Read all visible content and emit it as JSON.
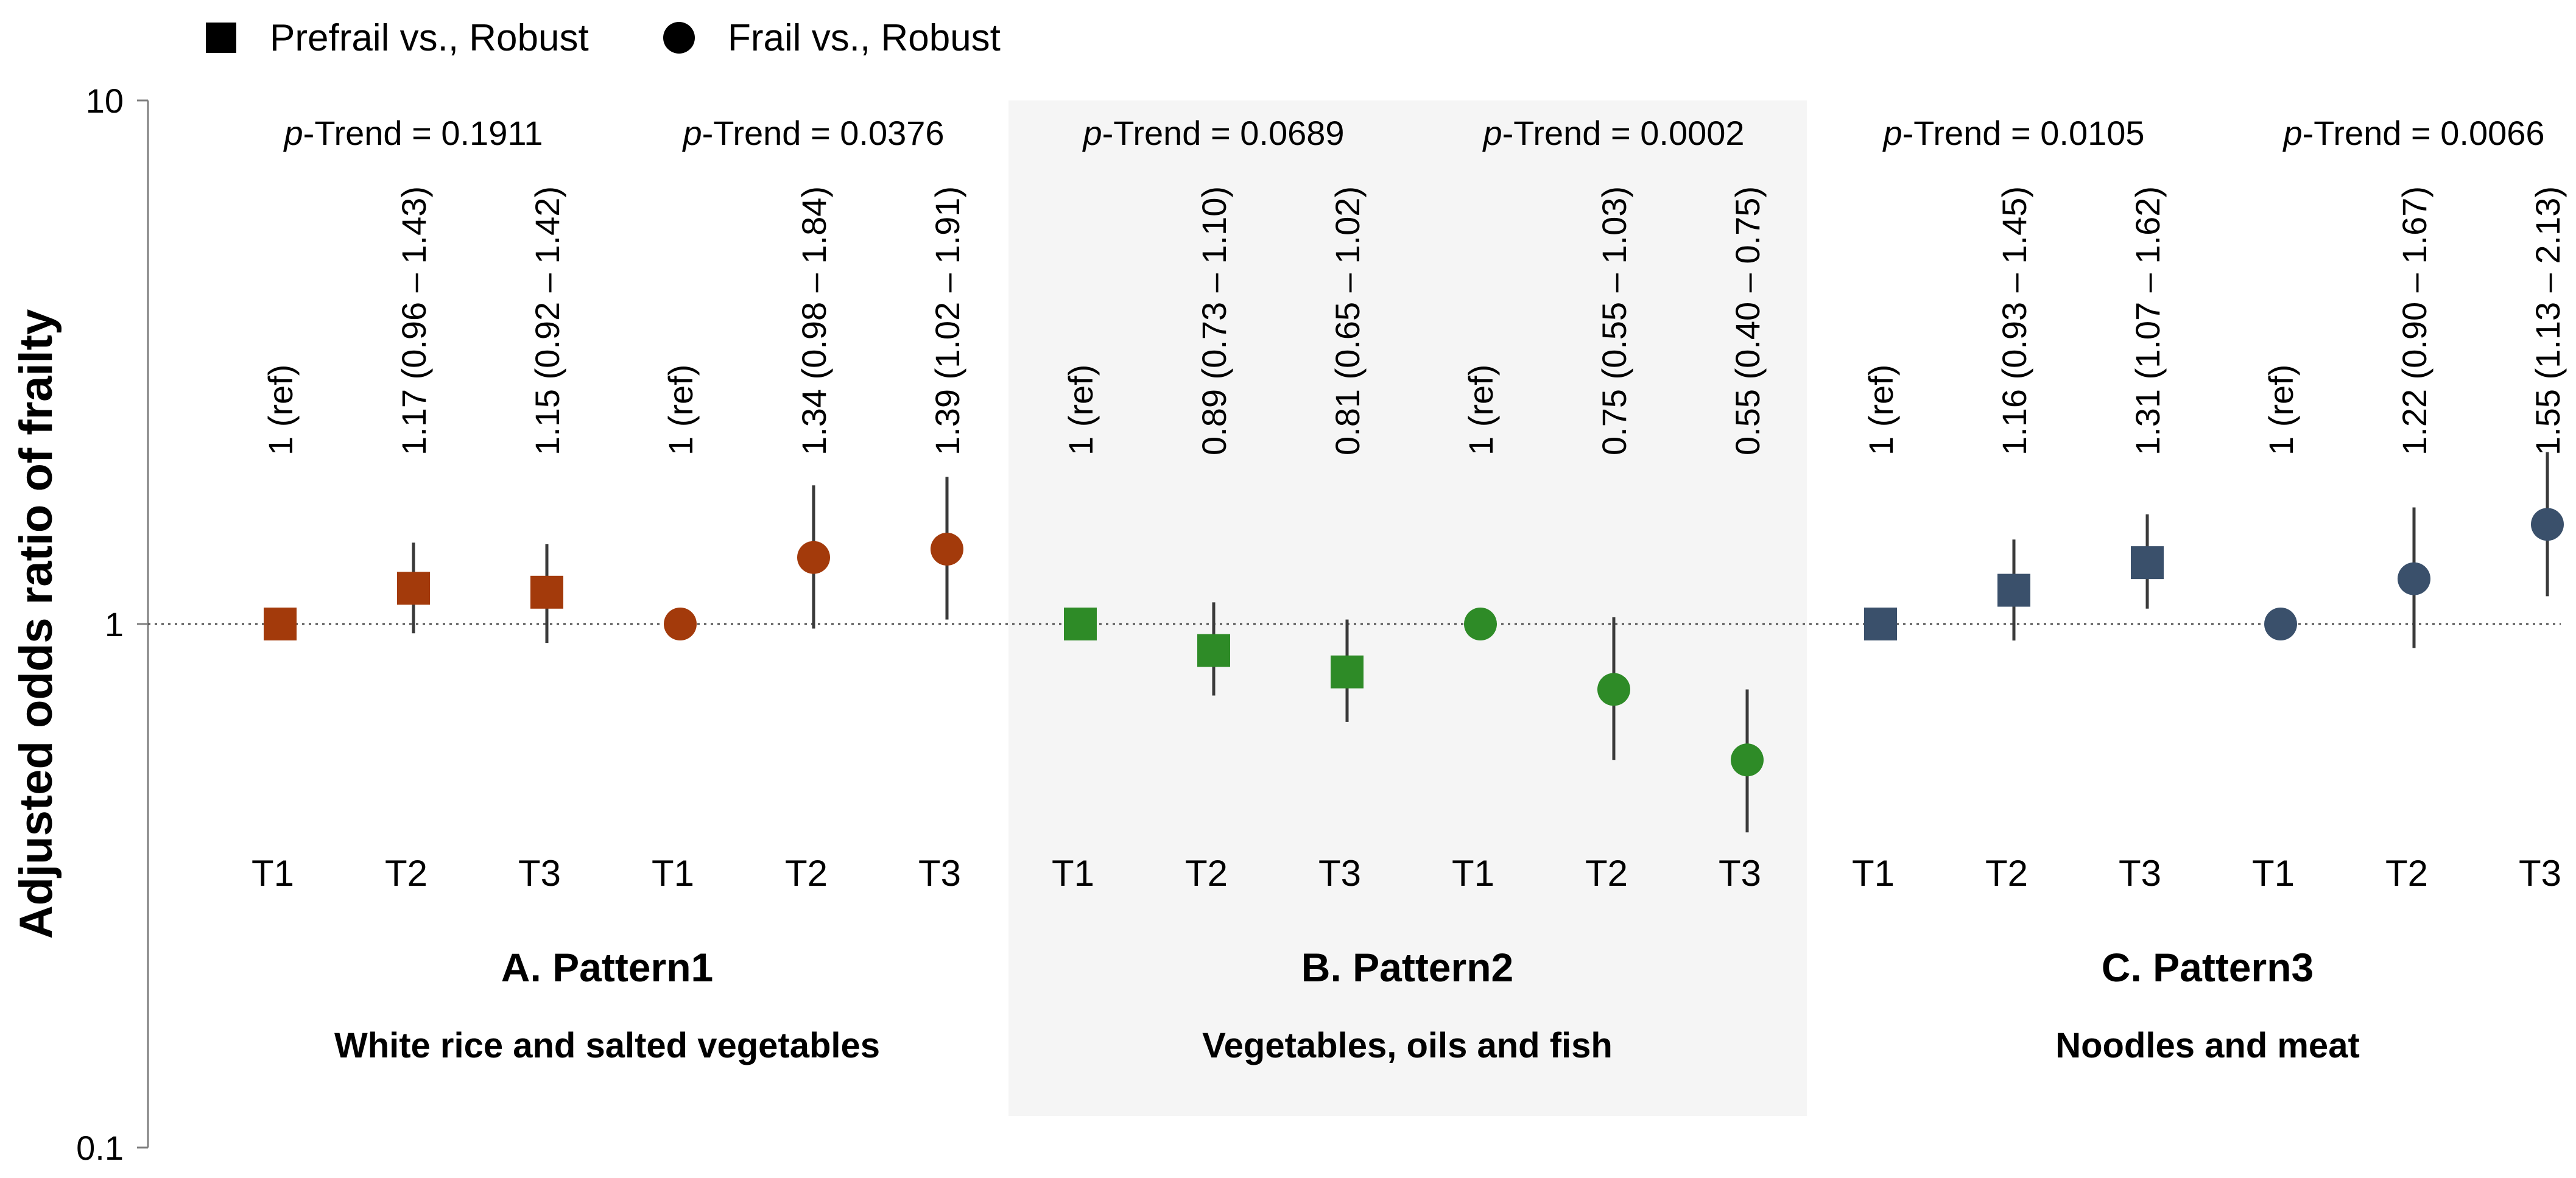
{
  "legend": [
    {
      "marker": "square",
      "label": "Prefrail vs., Robust"
    },
    {
      "marker": "circle",
      "label": "Frail vs., Robust"
    }
  ],
  "chart_data": {
    "type": "scatter",
    "scale": "log",
    "ylabel": "Adjusted odds ratio of frailty",
    "ylim": [
      0.1,
      10
    ],
    "yticks": [
      "10",
      "1",
      "0.1"
    ],
    "reference_line": 1,
    "panels": [
      {
        "title": "A. Pattern1",
        "subtitle": "White rice and salted vegetables",
        "color": "#a33a0b",
        "shaded": false,
        "groups": [
          {
            "name": "Prefrail vs., Robust",
            "marker": "square",
            "p_trend_prefix": "p",
            "p_trend_rest": "-Trend = 0.1911",
            "points": [
              {
                "t": "T1",
                "or": 1,
                "lo": null,
                "hi": null,
                "label": "1  (ref)"
              },
              {
                "t": "T2",
                "or": 1.17,
                "lo": 0.96,
                "hi": 1.43,
                "label": "1.17 (0.96 – 1.43)"
              },
              {
                "t": "T3",
                "or": 1.15,
                "lo": 0.92,
                "hi": 1.42,
                "label": "1.15 (0.92 – 1.42)"
              }
            ]
          },
          {
            "name": "Frail vs., Robust",
            "marker": "circle",
            "p_trend_prefix": "p",
            "p_trend_rest": "-Trend = 0.0376",
            "points": [
              {
                "t": "T1",
                "or": 1,
                "lo": null,
                "hi": null,
                "label": "1  (ref)"
              },
              {
                "t": "T2",
                "or": 1.34,
                "lo": 0.98,
                "hi": 1.84,
                "label": "1.34 (0.98 – 1.84)"
              },
              {
                "t": "T3",
                "or": 1.39,
                "lo": 1.02,
                "hi": 1.91,
                "label": "1.39 (1.02 – 1.91)"
              }
            ]
          }
        ]
      },
      {
        "title": "B. Pattern2",
        "subtitle": "Vegetables, oils and fish",
        "color": "#2e8b27",
        "shaded": true,
        "groups": [
          {
            "name": "Prefrail vs., Robust",
            "marker": "square",
            "p_trend_prefix": "p",
            "p_trend_rest": "-Trend = 0.0689",
            "points": [
              {
                "t": "T1",
                "or": 1,
                "lo": null,
                "hi": null,
                "label": "1  (ref)"
              },
              {
                "t": "T2",
                "or": 0.89,
                "lo": 0.73,
                "hi": 1.1,
                "label": "0.89 (0.73 – 1.10)"
              },
              {
                "t": "T3",
                "or": 0.81,
                "lo": 0.65,
                "hi": 1.02,
                "label": "0.81 (0.65 – 1.02)"
              }
            ]
          },
          {
            "name": "Frail vs., Robust",
            "marker": "circle",
            "p_trend_prefix": "p",
            "p_trend_rest": "-Trend = 0.0002",
            "points": [
              {
                "t": "T1",
                "or": 1,
                "lo": null,
                "hi": null,
                "label": "1  (ref)"
              },
              {
                "t": "T2",
                "or": 0.75,
                "lo": 0.55,
                "hi": 1.03,
                "label": "0.75 (0.55 – 1.03)"
              },
              {
                "t": "T3",
                "or": 0.55,
                "lo": 0.4,
                "hi": 0.75,
                "label": "0.55 (0.40 – 0.75)"
              }
            ]
          }
        ]
      },
      {
        "title": "C. Pattern3",
        "subtitle": "Noodles and meat",
        "color": "#3a506b",
        "shaded": false,
        "groups": [
          {
            "name": "Prefrail vs., Robust",
            "marker": "square",
            "p_trend_prefix": "p",
            "p_trend_rest": "-Trend = 0.0105",
            "points": [
              {
                "t": "T1",
                "or": 1,
                "lo": null,
                "hi": null,
                "label": "1  (ref)"
              },
              {
                "t": "T2",
                "or": 1.16,
                "lo": 0.93,
                "hi": 1.45,
                "label": "1.16 (0.93 – 1.45)"
              },
              {
                "t": "T3",
                "or": 1.31,
                "lo": 1.07,
                "hi": 1.62,
                "label": "1.31 (1.07 – 1.62)"
              }
            ]
          },
          {
            "name": "Frail vs., Robust",
            "marker": "circle",
            "p_trend_prefix": "p",
            "p_trend_rest": "-Trend = 0.0066",
            "points": [
              {
                "t": "T1",
                "or": 1,
                "lo": null,
                "hi": null,
                "label": "1  (ref)"
              },
              {
                "t": "T2",
                "or": 1.22,
                "lo": 0.9,
                "hi": 1.67,
                "label": "1.22 (0.90 – 1.67)"
              },
              {
                "t": "T3",
                "or": 1.55,
                "lo": 1.13,
                "hi": 2.13,
                "label": "1.55 (1.13 – 2.13)"
              }
            ]
          }
        ]
      }
    ]
  }
}
